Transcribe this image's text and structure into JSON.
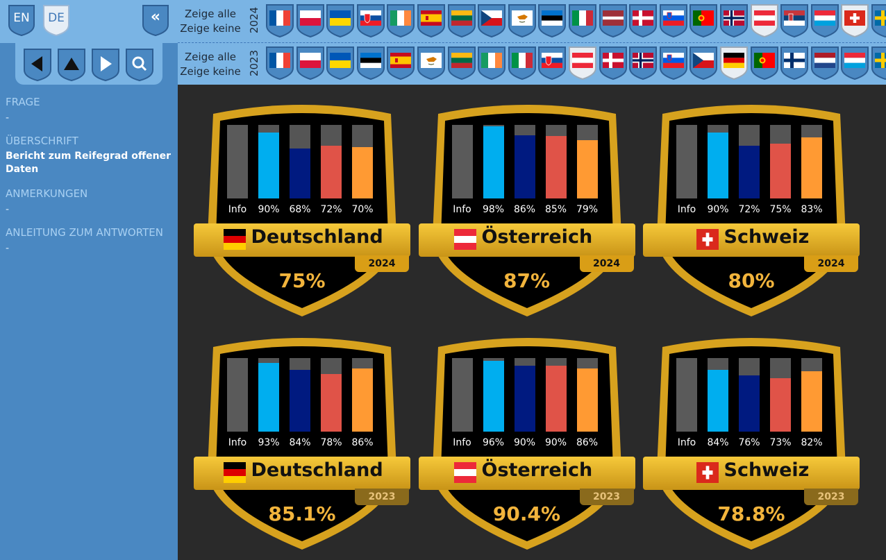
{
  "sidebar": {
    "lang_en": "EN",
    "lang_de": "DE",
    "collapse": "«",
    "frage_label": "FRAGE",
    "frage_value": "-",
    "ueberschrift_label": "ÜBERSCHRIFT",
    "ueberschrift_value": "Bericht zum Reifegrad offener Daten",
    "anmerkungen_label": "ANMERKUNGEN",
    "anmerkungen_value": "-",
    "anleitung_label": "ANLEITUNG ZUM ANTWORTEN",
    "anleitung_value": "-"
  },
  "filter": {
    "show_all": "Zeige alle",
    "show_none": "Zeige keine",
    "year_2024": "2024",
    "year_2023": "2023",
    "flags_2024": [
      "fr",
      "pl",
      "ua",
      "sk",
      "ie",
      "es",
      "lt",
      "cz",
      "cy",
      "ee",
      "it",
      "lv",
      "dk",
      "si",
      "pt",
      "no",
      "at",
      "rs",
      "lu",
      "ch",
      "se"
    ],
    "flags_2023": [
      "fr",
      "pl",
      "ua",
      "ee",
      "es",
      "cy",
      "lt",
      "ie",
      "it",
      "sk",
      "at",
      "dk",
      "no",
      "si",
      "cz",
      "de",
      "pt",
      "fi",
      "nl",
      "lu",
      "se"
    ],
    "selected_2024": [
      "at",
      "ch"
    ],
    "selected_2023": [
      "at",
      "de"
    ]
  },
  "bar_colors": [
    "#5a5a5a",
    "#00aeef",
    "#001a80",
    "#e05348",
    "#ff9a33"
  ],
  "badges": [
    {
      "country": "Deutschland",
      "flag": "de",
      "year": "2024",
      "score": "75%",
      "labels": [
        "Info",
        "90%",
        "68%",
        "72%",
        "70%"
      ],
      "values": [
        100,
        90,
        68,
        72,
        70
      ]
    },
    {
      "country": "Österreich",
      "flag": "at",
      "year": "2024",
      "score": "87%",
      "labels": [
        "Info",
        "98%",
        "86%",
        "85%",
        "79%"
      ],
      "values": [
        100,
        98,
        86,
        85,
        79
      ]
    },
    {
      "country": "Schweiz",
      "flag": "ch",
      "year": "2024",
      "score": "80%",
      "labels": [
        "Info",
        "90%",
        "72%",
        "75%",
        "83%"
      ],
      "values": [
        100,
        90,
        72,
        75,
        83
      ]
    },
    {
      "country": "Deutschland",
      "flag": "de",
      "year": "2023",
      "score": "85.1%",
      "labels": [
        "Info",
        "93%",
        "84%",
        "78%",
        "86%"
      ],
      "values": [
        100,
        93,
        84,
        78,
        86
      ]
    },
    {
      "country": "Österreich",
      "flag": "at",
      "year": "2023",
      "score": "90.4%",
      "labels": [
        "Info",
        "96%",
        "90%",
        "90%",
        "86%"
      ],
      "values": [
        100,
        96,
        90,
        90,
        86
      ]
    },
    {
      "country": "Schweiz",
      "flag": "ch",
      "year": "2023",
      "score": "78.8%",
      "labels": [
        "Info",
        "84%",
        "76%",
        "73%",
        "82%"
      ],
      "values": [
        100,
        84,
        76,
        73,
        82
      ]
    }
  ]
}
